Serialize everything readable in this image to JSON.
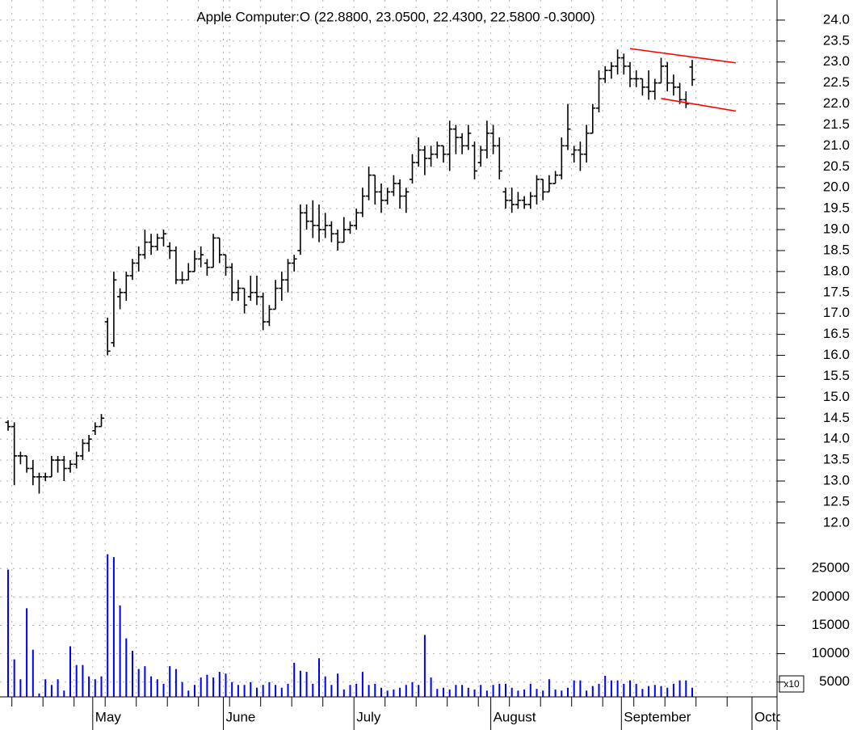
{
  "chart_data": [
    {
      "type": "ohlc",
      "subtitle": "Apple Computer:O (22.8800, 23.0500, 22.4300, 22.5800 -0.3000)",
      "color": "#000000",
      "grid": true,
      "categories": [
        null,
        null,
        null,
        null,
        null,
        null,
        null,
        null,
        null,
        null,
        null,
        null,
        null,
        null,
        "May",
        null,
        null,
        null,
        null,
        null,
        null,
        null,
        null,
        null,
        null,
        null,
        null,
        null,
        null,
        null,
        null,
        null,
        null,
        null,
        null,
        "June",
        null,
        null,
        null,
        null,
        null,
        null,
        null,
        null,
        null,
        null,
        null,
        null,
        null,
        null,
        null,
        null,
        null,
        null,
        null,
        null,
        "July",
        null,
        null,
        null,
        null,
        null,
        null,
        null,
        null,
        null,
        null,
        null,
        null,
        null,
        null,
        null,
        null,
        null,
        null,
        null,
        null,
        null,
        "August",
        null,
        null,
        null,
        null,
        null,
        null,
        null,
        null,
        null,
        null,
        null,
        null,
        null,
        null,
        null,
        null,
        null,
        null,
        null,
        null,
        "September",
        null,
        null,
        null,
        null,
        null,
        null,
        null,
        null,
        null,
        null,
        null,
        null,
        null,
        null,
        null,
        null,
        null,
        null,
        null,
        null,
        "October"
      ],
      "open": [
        14.4,
        14.3,
        13.6,
        13.6,
        13.3,
        13.1,
        13.1,
        13.1,
        13.5,
        13.5,
        13.3,
        13.4,
        13.6,
        13.9,
        14.2,
        14.3,
        16.8,
        16.3,
        17.4,
        17.5,
        17.9,
        18.2,
        18.4,
        18.7,
        18.6,
        18.8,
        18.6,
        18.5,
        17.8,
        17.8,
        18.0,
        18.3,
        18.2,
        18.1,
        18.8,
        18.4,
        18.1,
        17.5,
        17.6,
        17.4,
        17.5,
        17.4,
        16.8,
        17.1,
        17.6,
        17.8,
        18.2,
        18.5,
        19.4,
        19.2,
        19.1,
        19.0,
        19.1,
        18.9,
        18.7,
        19.0,
        19.1,
        19.4,
        19.8,
        20.3,
        19.9,
        19.7,
        19.9,
        20.1,
        19.8,
        20.2,
        20.6,
        20.9,
        20.7,
        20.8,
        21.0,
        20.8,
        21.4,
        21.2,
        21.0,
        21.0,
        20.6,
        20.9,
        21.3,
        21.0,
        19.9,
        19.7,
        19.6,
        19.7,
        19.6,
        19.8,
        20.2,
        19.9,
        20.1,
        20.3,
        21.0,
        20.8,
        20.9,
        20.8,
        21.3,
        21.9,
        22.6,
        22.8,
        22.9,
        23.1,
        22.9,
        22.6,
        22.6,
        22.4,
        22.3,
        22.5,
        22.9,
        22.5,
        22.4,
        22.1,
        22.88,
        null,
        null,
        null,
        null,
        null,
        null,
        null,
        null,
        null,
        null
      ],
      "high": [
        14.45,
        14.4,
        13.7,
        13.6,
        13.5,
        13.2,
        13.2,
        13.6,
        13.6,
        13.6,
        13.5,
        13.7,
        14.0,
        14.1,
        14.4,
        14.6,
        16.9,
        18.0,
        17.6,
        18.0,
        18.3,
        18.6,
        19.0,
        18.9,
        18.9,
        19.0,
        18.7,
        18.6,
        18.0,
        18.2,
        18.5,
        18.6,
        18.3,
        18.9,
        18.8,
        18.4,
        18.2,
        17.8,
        17.6,
        17.9,
        17.9,
        17.5,
        17.2,
        17.8,
        18.0,
        18.3,
        18.4,
        19.6,
        19.6,
        19.7,
        19.6,
        19.4,
        19.2,
        19.0,
        19.3,
        19.2,
        19.5,
        20.0,
        20.5,
        20.3,
        20.1,
        20.0,
        20.3,
        20.2,
        20.0,
        20.8,
        21.2,
        21.0,
        21.0,
        21.1,
        21.0,
        21.6,
        21.5,
        21.3,
        21.5,
        21.1,
        21.0,
        21.6,
        21.5,
        21.2,
        20.0,
        20.0,
        19.9,
        19.8,
        19.9,
        20.3,
        20.2,
        20.3,
        20.4,
        21.2,
        22.0,
        21.0,
        21.1,
        21.5,
        22.0,
        22.8,
        22.9,
        23.0,
        23.3,
        23.2,
        23.0,
        22.8,
        22.6,
        22.8,
        22.6,
        23.1,
        23.0,
        22.7,
        22.5,
        22.3,
        23.05,
        null,
        null,
        null,
        null,
        null,
        null,
        null,
        null,
        null,
        null
      ],
      "low": [
        14.2,
        12.9,
        13.4,
        13.2,
        12.9,
        12.7,
        13.0,
        13.1,
        13.2,
        13.0,
        13.2,
        13.3,
        13.5,
        13.7,
        14.1,
        14.3,
        16.0,
        16.2,
        17.1,
        17.3,
        17.8,
        18.0,
        18.3,
        18.4,
        18.5,
        18.6,
        18.3,
        17.7,
        17.7,
        17.8,
        18.0,
        18.1,
        17.9,
        18.1,
        18.2,
        17.9,
        17.3,
        17.3,
        17.0,
        17.3,
        17.2,
        16.6,
        16.7,
        17.1,
        17.3,
        17.5,
        18.0,
        18.4,
        19.0,
        18.8,
        18.7,
        18.8,
        18.7,
        18.5,
        18.7,
        18.9,
        19.0,
        19.3,
        19.7,
        19.6,
        19.4,
        19.6,
        19.8,
        19.5,
        19.4,
        20.1,
        20.5,
        20.3,
        20.5,
        20.7,
        20.6,
        20.4,
        20.8,
        20.8,
        20.9,
        20.2,
        20.5,
        20.7,
        20.8,
        20.2,
        19.5,
        19.4,
        19.5,
        19.5,
        19.5,
        19.6,
        19.7,
        19.9,
        20.1,
        20.2,
        20.9,
        20.6,
        20.4,
        20.6,
        21.3,
        21.8,
        22.5,
        22.6,
        22.7,
        22.7,
        22.4,
        22.4,
        22.2,
        22.1,
        22.1,
        22.5,
        22.3,
        22.2,
        22.0,
        21.9,
        22.43,
        null,
        null,
        null,
        null,
        null,
        null,
        null,
        null,
        null,
        null
      ],
      "close": [
        14.3,
        13.6,
        13.6,
        13.3,
        13.1,
        13.1,
        13.1,
        13.5,
        13.5,
        13.3,
        13.4,
        13.6,
        13.9,
        14.0,
        14.3,
        14.5,
        16.1,
        17.8,
        17.5,
        17.9,
        18.2,
        18.4,
        18.7,
        18.6,
        18.8,
        18.9,
        18.5,
        17.8,
        17.8,
        18.0,
        18.3,
        18.4,
        18.1,
        18.8,
        18.4,
        18.1,
        17.5,
        17.6,
        17.2,
        17.5,
        17.4,
        16.8,
        17.1,
        17.6,
        17.8,
        18.2,
        18.3,
        19.4,
        19.2,
        19.1,
        19.0,
        19.1,
        18.9,
        18.7,
        19.0,
        19.1,
        19.4,
        19.8,
        20.3,
        19.9,
        19.7,
        19.9,
        20.1,
        19.8,
        19.9,
        20.6,
        20.9,
        20.7,
        20.8,
        21.0,
        20.8,
        21.4,
        21.2,
        21.0,
        21.3,
        20.4,
        20.9,
        21.3,
        21.0,
        20.4,
        19.7,
        19.6,
        19.7,
        19.6,
        19.8,
        20.2,
        19.9,
        20.1,
        20.3,
        21.0,
        21.4,
        20.9,
        20.8,
        21.3,
        21.9,
        22.6,
        22.8,
        22.9,
        23.1,
        22.9,
        22.6,
        22.6,
        22.4,
        22.3,
        22.5,
        22.9,
        22.5,
        22.4,
        22.1,
        22.0,
        22.58,
        null,
        null,
        null,
        null,
        null,
        null,
        null,
        null,
        null,
        null
      ],
      "trendlines": [
        {
          "color": "#ff0000",
          "x": [
            100,
            117
          ],
          "y": [
            23.32,
            22.98
          ]
        },
        {
          "color": "#ff0000",
          "x": [
            105,
            117
          ],
          "y": [
            22.13,
            21.83
          ]
        }
      ],
      "ylim": [
        11.65,
        24.48
      ],
      "yticks": [
        {
          "value": 12,
          "label": "12.0"
        },
        {
          "value": 12.5,
          "label": "12.5"
        },
        {
          "value": 13,
          "label": "13.0"
        },
        {
          "value": 13.5,
          "label": "13.5"
        },
        {
          "value": 14,
          "label": "14.0"
        },
        {
          "value": 14.5,
          "label": "14.5"
        },
        {
          "value": 15,
          "label": "15.0"
        },
        {
          "value": 15.5,
          "label": "15.5"
        },
        {
          "value": 16,
          "label": "16.0"
        },
        {
          "value": 16.5,
          "label": "16.5"
        },
        {
          "value": 17,
          "label": "17.0"
        },
        {
          "value": 17.5,
          "label": "17.5"
        },
        {
          "value": 18,
          "label": "18.0"
        },
        {
          "value": 18.5,
          "label": "18.5"
        },
        {
          "value": 19,
          "label": "19.0"
        },
        {
          "value": 19.5,
          "label": "19.5"
        },
        {
          "value": 20,
          "label": "20.0"
        },
        {
          "value": 20.5,
          "label": "20.5"
        },
        {
          "value": 21,
          "label": "21.0"
        },
        {
          "value": 21.5,
          "label": "21.5"
        },
        {
          "value": 22,
          "label": "22.0"
        },
        {
          "value": 22.5,
          "label": "22.5"
        },
        {
          "value": 23,
          "label": "23.0"
        },
        {
          "value": 23.5,
          "label": "23.5"
        },
        {
          "value": 24,
          "label": "24.0"
        }
      ]
    },
    {
      "type": "bar",
      "color": "#0000ff",
      "annotation": "x10",
      "values": [
        24800,
        9000,
        5500,
        18000,
        10700,
        3000,
        5500,
        4500,
        5500,
        3500,
        11300,
        8000,
        8000,
        6000,
        5500,
        6000,
        27500,
        27000,
        18500,
        12700,
        10500,
        7300,
        7800,
        6000,
        5500,
        4700,
        7800,
        7300,
        5000,
        3500,
        4500,
        5800,
        6300,
        5800,
        6800,
        6500,
        5000,
        4500,
        4500,
        5000,
        4000,
        4500,
        5000,
        4500,
        4000,
        4700,
        8400,
        7000,
        6800,
        4700,
        9200,
        6000,
        4500,
        6500,
        3700,
        4500,
        4700,
        6800,
        4500,
        4700,
        4000,
        3500,
        3700,
        4000,
        4500,
        5000,
        4500,
        13300,
        5800,
        3800,
        4000,
        3700,
        4500,
        4500,
        4000,
        3700,
        4500,
        3500,
        4500,
        4700,
        4700,
        4000,
        3500,
        3700,
        4700,
        3800,
        3500,
        5500,
        3700,
        3500,
        4000,
        5300,
        5300,
        3500,
        4300,
        4700,
        6100,
        5300,
        5300,
        4700,
        5300,
        4700,
        3800,
        4300,
        4500,
        4300,
        4000,
        4700,
        5300,
        5300,
        4000,
        null,
        null,
        null,
        null,
        null,
        null,
        null,
        null,
        null,
        null
      ],
      "ylim": [
        2400,
        28300
      ],
      "yticks": [
        5000,
        10000,
        15000,
        20000,
        25000
      ]
    }
  ]
}
